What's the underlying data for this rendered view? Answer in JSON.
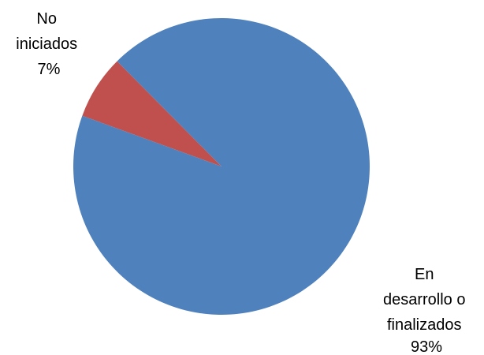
{
  "chart_data": {
    "type": "pie",
    "title": "",
    "legend": "none",
    "slices": [
      {
        "label_lines": [
          "No",
          "iniciados"
        ],
        "percent_label": "7%",
        "value": 7,
        "color": "#c0504d"
      },
      {
        "label_lines": [
          "En",
          "desarrollo o",
          "finalizados"
        ],
        "percent_label": "93%",
        "value": 93,
        "color": "#4f81bd"
      }
    ]
  }
}
